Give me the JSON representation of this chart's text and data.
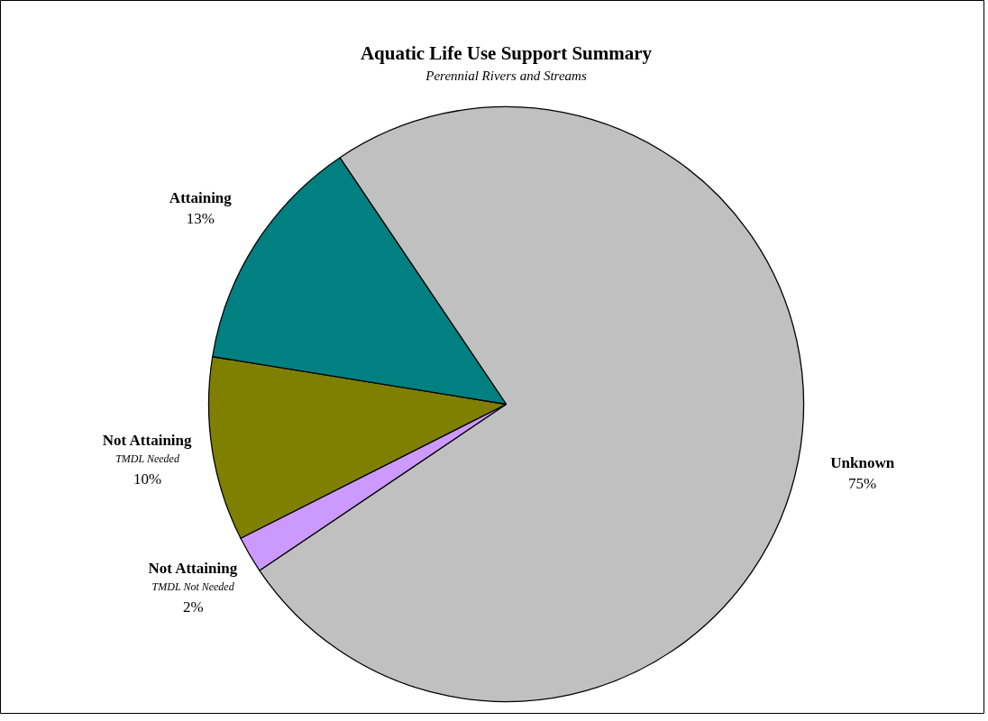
{
  "chart_data": {
    "type": "pie",
    "title": "Aquatic Life Use Support Summary",
    "subtitle": "Perennial Rivers and Streams",
    "categories": [
      "Unknown",
      "Not Attaining\nTMDL Not Needed",
      "Not Attaining\nTMDL Needed",
      "Attaining"
    ],
    "values": [
      75,
      2,
      10,
      13
    ],
    "colors": [
      "#c0c0c0",
      "#cc99ff",
      "#808000",
      "#008080"
    ],
    "value_labels": [
      "75%",
      "2%",
      "10%",
      "13%"
    ]
  }
}
